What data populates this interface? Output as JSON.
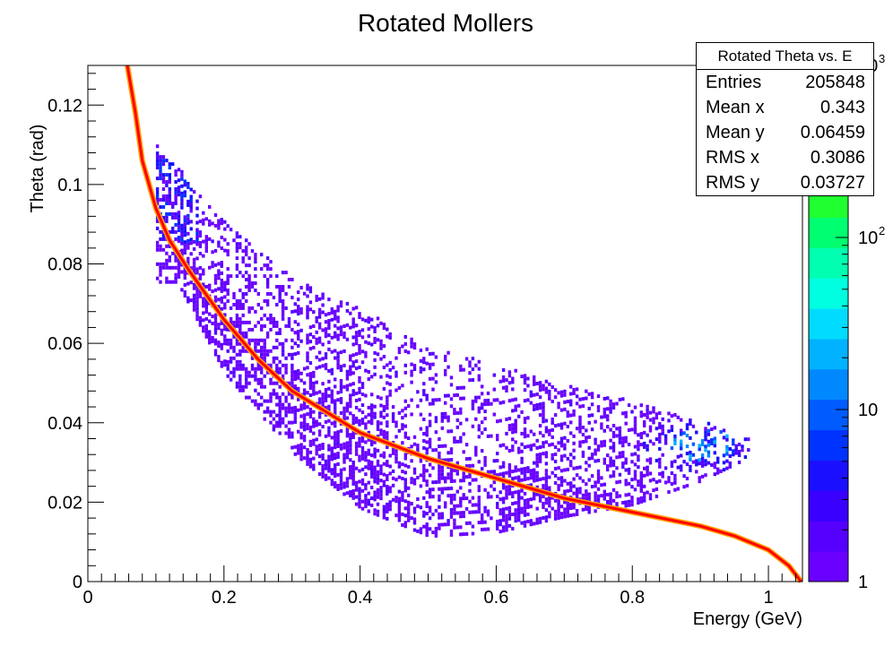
{
  "chart_data": {
    "type": "heatmap",
    "title": "Rotated Mollers",
    "xlabel": "Energy (GeV)",
    "ylabel": "Theta (rad)",
    "xlim": [
      0,
      1.05
    ],
    "ylim": [
      0,
      0.13
    ],
    "x_ticks": [
      0,
      0.2,
      0.4,
      0.6,
      0.8,
      1
    ],
    "y_ticks": [
      0,
      0.02,
      0.04,
      0.06,
      0.08,
      0.1,
      0.12
    ],
    "x_tick_labels": [
      "0",
      "0.2",
      "0.4",
      "0.6",
      "0.8",
      "1"
    ],
    "y_tick_labels": [
      "0",
      "0.02",
      "0.04",
      "0.06",
      "0.08",
      "0.1",
      "0.12"
    ],
    "color_scale": "log",
    "z_range": [
      1,
      1000
    ],
    "z_tick_labels": [
      "1",
      "10",
      "10",
      "10"
    ],
    "z_tick_exponents": [
      "",
      "",
      "2",
      "3"
    ],
    "ridge_curve": [
      [
        0.058,
        0.13
      ],
      [
        0.07,
        0.118
      ],
      [
        0.08,
        0.106
      ],
      [
        0.1,
        0.094
      ],
      [
        0.12,
        0.086
      ],
      [
        0.15,
        0.078
      ],
      [
        0.2,
        0.066
      ],
      [
        0.25,
        0.056
      ],
      [
        0.3,
        0.048
      ],
      [
        0.4,
        0.0375
      ],
      [
        0.5,
        0.031
      ],
      [
        0.6,
        0.026
      ],
      [
        0.7,
        0.021
      ],
      [
        0.8,
        0.0175
      ],
      [
        0.9,
        0.014
      ],
      [
        0.95,
        0.0115
      ],
      [
        1.0,
        0.008
      ],
      [
        1.03,
        0.004
      ],
      [
        1.048,
        0.0
      ]
    ],
    "band_lower": [
      [
        0.13,
        0.075
      ],
      [
        0.2,
        0.052
      ],
      [
        0.3,
        0.032
      ],
      [
        0.4,
        0.018
      ],
      [
        0.5,
        0.011
      ],
      [
        0.6,
        0.012
      ],
      [
        0.7,
        0.016
      ],
      [
        0.8,
        0.019
      ],
      [
        0.9,
        0.025
      ],
      [
        0.96,
        0.03
      ]
    ],
    "band_upper": [
      [
        0.1,
        0.11
      ],
      [
        0.2,
        0.09
      ],
      [
        0.3,
        0.076
      ],
      [
        0.4,
        0.068
      ],
      [
        0.5,
        0.06
      ],
      [
        0.6,
        0.054
      ],
      [
        0.7,
        0.049
      ],
      [
        0.8,
        0.045
      ],
      [
        0.9,
        0.04
      ],
      [
        0.96,
        0.036
      ]
    ],
    "hot_spot": {
      "x": 0.9,
      "y": 0.034
    },
    "colors": {
      "ridge": "#ff0000",
      "palette": [
        "#6a00ff",
        "#5500ff",
        "#3a00ff",
        "#1a10ff",
        "#0033ff",
        "#005cff",
        "#0088ff",
        "#00b2ff",
        "#00dcff",
        "#00ffe0",
        "#00ffb0",
        "#00ff70",
        "#20ff30",
        "#50ff10",
        "#90ff00",
        "#d0ff00",
        "#f8ff00"
      ]
    }
  },
  "stats": {
    "title": "Rotated Theta vs. E",
    "rows": [
      {
        "label": "Entries",
        "value": "205848"
      },
      {
        "label": "Mean x",
        "value": "0.343"
      },
      {
        "label": "Mean y",
        "value": "0.06459"
      },
      {
        "label": "RMS x",
        "value": "0.3086"
      },
      {
        "label": "RMS y",
        "value": "0.03727"
      }
    ]
  }
}
